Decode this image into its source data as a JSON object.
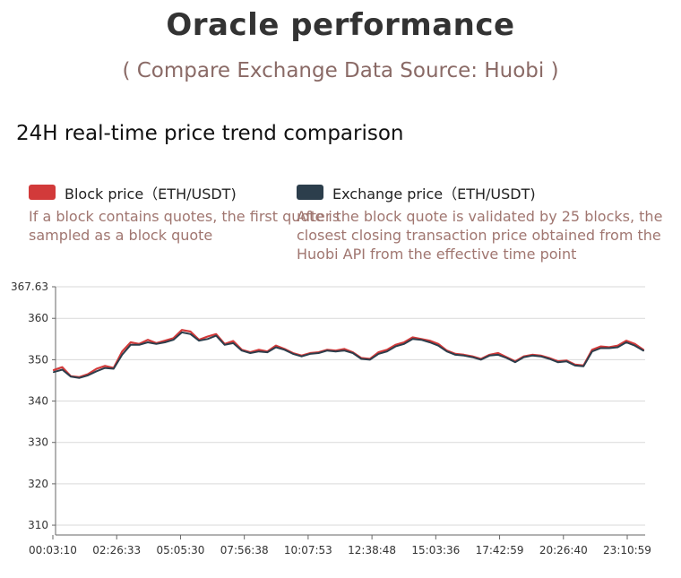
{
  "header": {
    "title": "Oracle performance",
    "subtitle": "( Compare Exchange Data Source: Huobi )",
    "section_title": "24H real-time price trend comparison"
  },
  "legend": {
    "block": {
      "label": "Block price（ETH/USDT)",
      "color": "#d23a3a",
      "description": "If a block contains quotes, the first quote is sampled as a block quote"
    },
    "exchange": {
      "label": "Exchange price（ETH/USDT)",
      "color": "#2c3e4c",
      "description": "After the block quote is validated by 25 blocks, the closest closing transaction price obtained from the Huobi API from the effective time point"
    }
  },
  "chart_data": {
    "type": "line",
    "title": "24H real-time price trend comparison",
    "ylim": [
      307.63,
      367.63
    ],
    "y_ticks": [
      "367.63",
      "360",
      "350",
      "340",
      "330",
      "320",
      "310"
    ],
    "x_ticks": [
      "00:03:10",
      "02:26:33",
      "05:05:30",
      "07:56:38",
      "10:07:53",
      "12:38:48",
      "15:03:36",
      "17:42:59",
      "20:26:40",
      "23:10:59"
    ],
    "grid": true,
    "legend_position": "top",
    "series": [
      {
        "name": "Block price（ETH/USDT)",
        "color": "#d23a3a",
        "values": [
          347.5,
          348.2,
          346.0,
          345.8,
          346.5,
          347.8,
          348.5,
          348.0,
          352.0,
          354.2,
          353.8,
          354.8,
          354.0,
          354.6,
          355.2,
          357.2,
          356.8,
          354.8,
          355.6,
          356.2,
          353.8,
          354.5,
          352.4,
          351.8,
          352.4,
          352.0,
          353.4,
          352.6,
          351.6,
          351.0,
          351.6,
          351.8,
          352.4,
          352.2,
          352.6,
          351.8,
          350.4,
          350.2,
          351.8,
          352.4,
          353.6,
          354.2,
          355.4,
          355.0,
          354.6,
          353.8,
          352.2,
          351.4,
          351.2,
          350.8,
          350.2,
          351.2,
          351.6,
          350.6,
          349.6,
          350.8,
          351.2,
          351.0,
          350.4,
          349.6,
          349.8,
          348.8,
          348.6,
          352.4,
          353.2,
          353.0,
          353.4,
          354.6,
          353.8,
          352.4
        ]
      },
      {
        "name": "Exchange price（ETH/USDT)",
        "color": "#2c3e4c",
        "values": [
          347.0,
          347.6,
          345.9,
          345.6,
          346.2,
          347.2,
          348.0,
          347.8,
          351.2,
          353.6,
          353.6,
          354.2,
          353.8,
          354.2,
          354.8,
          356.6,
          356.2,
          354.6,
          355.0,
          355.8,
          353.6,
          354.0,
          352.2,
          351.6,
          352.0,
          351.8,
          353.0,
          352.4,
          351.4,
          350.8,
          351.4,
          351.6,
          352.2,
          352.0,
          352.2,
          351.6,
          350.2,
          350.0,
          351.4,
          352.0,
          353.2,
          353.8,
          355.0,
          354.8,
          354.2,
          353.4,
          352.0,
          351.2,
          351.0,
          350.6,
          350.0,
          351.0,
          351.2,
          350.4,
          349.4,
          350.6,
          351.0,
          350.8,
          350.2,
          349.4,
          349.6,
          348.6,
          348.4,
          352.0,
          352.8,
          352.8,
          353.0,
          354.2,
          353.4,
          352.2
        ]
      }
    ]
  }
}
